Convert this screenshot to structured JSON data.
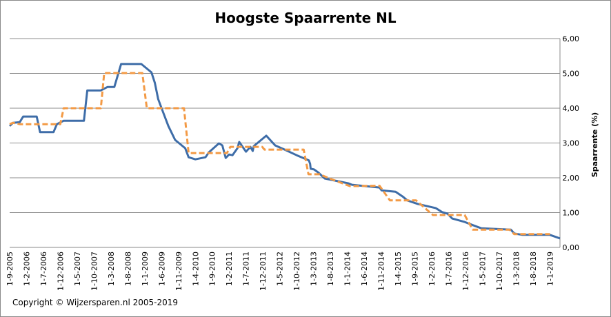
{
  "chart_data": {
    "type": "line",
    "title": "Hoogste Spaarrente NL",
    "xlabel": "",
    "ylabel": "Spaarrente (%)",
    "ylim": [
      0,
      6
    ],
    "y_ticks": [
      "0,00",
      "1,00",
      "2,00",
      "3,00",
      "4,00",
      "5,00",
      "6,00"
    ],
    "y_axis_position": "right",
    "grid": true,
    "legend": "none",
    "x_ticks": [
      "1-9-2005",
      "1-2-2006",
      "1-7-2006",
      "1-12-2006",
      "1-5-2007",
      "1-10-2007",
      "1-3-2008",
      "1-8-2008",
      "1-1-2009",
      "1-6-2009",
      "1-11-2009",
      "1-4-2010",
      "1-9-2010",
      "1-2-2011",
      "1-7-2011",
      "1-12-2011",
      "1-5-2012",
      "1-10-2012",
      "1-3-2013",
      "1-8-2013",
      "1-1-2014",
      "1-6-2014",
      "1-11-2014",
      "1-4-2015",
      "1-9-2015",
      "1-2-2016",
      "1-7-2016",
      "1-12-2016",
      "1-5-2017",
      "1-10-2017",
      "1-3-2018",
      "1-8-2018",
      "1-1-2019"
    ],
    "xlim": [
      "2005-09-01",
      "2019-04-01"
    ],
    "series": [
      {
        "style": "solid",
        "color": "#3E6DA8",
        "points": [
          [
            "2005-09-01",
            3.49
          ],
          [
            "2005-10-01",
            3.58
          ],
          [
            "2005-12-01",
            3.6
          ],
          [
            "2006-01-01",
            3.76
          ],
          [
            "2006-05-01",
            3.76
          ],
          [
            "2006-06-01",
            3.31
          ],
          [
            "2006-10-01",
            3.31
          ],
          [
            "2006-11-01",
            3.54
          ],
          [
            "2007-01-01",
            3.64
          ],
          [
            "2007-07-01",
            3.64
          ],
          [
            "2007-08-01",
            4.51
          ],
          [
            "2007-12-01",
            4.51
          ],
          [
            "2008-02-01",
            4.61
          ],
          [
            "2008-04-01",
            4.61
          ],
          [
            "2008-06-01",
            5.27
          ],
          [
            "2008-12-01",
            5.27
          ],
          [
            "2009-03-01",
            5.03
          ],
          [
            "2009-04-01",
            4.73
          ],
          [
            "2009-05-01",
            4.26
          ],
          [
            "2009-06-01",
            4.0
          ],
          [
            "2009-08-01",
            3.49
          ],
          [
            "2009-10-01",
            3.09
          ],
          [
            "2010-01-01",
            2.85
          ],
          [
            "2010-02-01",
            2.59
          ],
          [
            "2010-04-01",
            2.53
          ],
          [
            "2010-07-01",
            2.59
          ],
          [
            "2010-08-01",
            2.73
          ],
          [
            "2010-11-01",
            2.99
          ],
          [
            "2010-12-01",
            2.93
          ],
          [
            "2011-01-01",
            2.57
          ],
          [
            "2011-02-01",
            2.67
          ],
          [
            "2011-03-01",
            2.65
          ],
          [
            "2011-04-15",
            2.85
          ],
          [
            "2011-05-01",
            3.03
          ],
          [
            "2011-07-01",
            2.75
          ],
          [
            "2011-08-10",
            2.89
          ],
          [
            "2011-09-01",
            2.77
          ],
          [
            "2011-09-10",
            2.91
          ],
          [
            "2012-01-01",
            3.21
          ],
          [
            "2012-03-20",
            2.93
          ],
          [
            "2012-06-01",
            2.83
          ],
          [
            "2012-10-01",
            2.65
          ],
          [
            "2013-01-20",
            2.5
          ],
          [
            "2013-02-01",
            2.4
          ],
          [
            "2013-02-06",
            2.26
          ],
          [
            "2013-03-06",
            2.24
          ],
          [
            "2013-04-18",
            2.14
          ],
          [
            "2013-06-10",
            1.98
          ],
          [
            "2013-08-10",
            1.94
          ],
          [
            "2014-01-12",
            1.84
          ],
          [
            "2014-02-12",
            1.8
          ],
          [
            "2014-10-18",
            1.72
          ],
          [
            "2014-11-06",
            1.64
          ],
          [
            "2015-03-10",
            1.6
          ],
          [
            "2015-05-18",
            1.45
          ],
          [
            "2015-06-24",
            1.35
          ],
          [
            "2015-09-27",
            1.25
          ],
          [
            "2016-03-06",
            1.13
          ],
          [
            "2016-05-06",
            1.01
          ],
          [
            "2016-06-21",
            0.97
          ],
          [
            "2016-08-03",
            0.83
          ],
          [
            "2016-11-24",
            0.73
          ],
          [
            "2017-03-01",
            0.61
          ],
          [
            "2017-04-21",
            0.55
          ],
          [
            "2018-01-15",
            0.51
          ],
          [
            "2018-02-15",
            0.4
          ],
          [
            "2018-04-27",
            0.36
          ],
          [
            "2019-01-01",
            0.36
          ],
          [
            "2019-04-01",
            0.26
          ]
        ]
      },
      {
        "style": "dashed",
        "color": "#F39A45",
        "points": [
          [
            "2005-09-01",
            3.54
          ],
          [
            "2005-10-01",
            3.58
          ],
          [
            "2005-12-01",
            3.54
          ],
          [
            "2006-12-01",
            3.54
          ],
          [
            "2007-01-01",
            4.0
          ],
          [
            "2007-12-01",
            4.0
          ],
          [
            "2008-01-01",
            5.01
          ],
          [
            "2008-12-10",
            5.01
          ],
          [
            "2009-01-20",
            4.0
          ],
          [
            "2009-12-20",
            4.0
          ],
          [
            "2010-02-01",
            2.71
          ],
          [
            "2011-01-12",
            2.71
          ],
          [
            "2011-02-12",
            2.89
          ],
          [
            "2011-11-25",
            2.89
          ],
          [
            "2011-12-15",
            2.81
          ],
          [
            "2012-12-04",
            2.81
          ],
          [
            "2013-01-16",
            2.1
          ],
          [
            "2013-04-25",
            2.1
          ],
          [
            "2013-08-10",
            1.96
          ],
          [
            "2014-01-25",
            1.76
          ],
          [
            "2014-10-18",
            1.77
          ],
          [
            "2015-01-20",
            1.35
          ],
          [
            "2015-09-12",
            1.35
          ],
          [
            "2016-02-12",
            0.93
          ],
          [
            "2016-11-24",
            0.93
          ],
          [
            "2017-02-06",
            0.51
          ],
          [
            "2018-01-03",
            0.51
          ],
          [
            "2018-02-15",
            0.38
          ],
          [
            "2019-01-03",
            0.38
          ]
        ]
      }
    ]
  },
  "footer": {
    "copyright": "Copyright © Wijzersparen.nl 2005-2019"
  }
}
